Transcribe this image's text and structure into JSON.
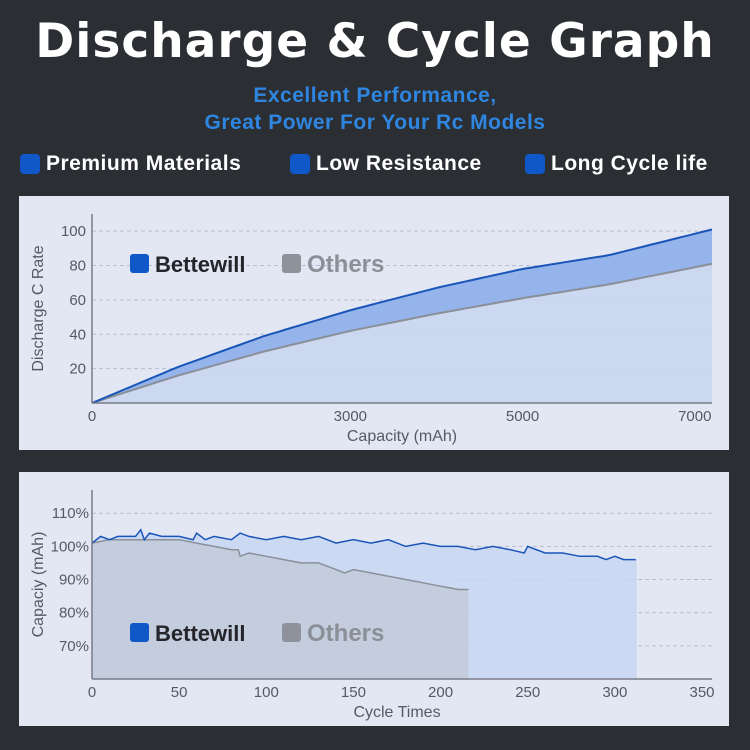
{
  "title": "Discharge & Cycle Graph",
  "subtitle": [
    "Excellent Performance,",
    "Great Power For Your Rc Models"
  ],
  "features": [
    "Premium Materials",
    "Low Resistance",
    "Long Cycle life"
  ],
  "colors": {
    "background": "#2b2e33",
    "panel": "#e3e7f4",
    "accent": "#2e86e0",
    "bettewill": "#1058c8",
    "others": "#8e939b"
  },
  "chart_data": [
    {
      "type": "line",
      "ylabel": "Discharge C Rate",
      "xlabel": "Capacity (mAh)",
      "xlim": [
        0,
        7200
      ],
      "ylim": [
        0,
        110
      ],
      "xticks": [
        0,
        3000,
        5000,
        7000
      ],
      "yticks": [
        20,
        40,
        60,
        80,
        100
      ],
      "legend": [
        "Bettewill",
        "Others"
      ],
      "legend_position": "top-left",
      "grid": "horizontal dashed",
      "series": [
        {
          "name": "Bettewill",
          "x": [
            0,
            1000,
            2000,
            3000,
            4000,
            5000,
            6000,
            7200
          ],
          "y": [
            0,
            21,
            39,
            54,
            67,
            78,
            86,
            101
          ]
        },
        {
          "name": "Others",
          "x": [
            0,
            1000,
            2000,
            3000,
            4000,
            5000,
            6000,
            7200
          ],
          "y": [
            0,
            16,
            30,
            42,
            52,
            61,
            69,
            81
          ]
        }
      ]
    },
    {
      "type": "area",
      "ylabel": "Capaciy (mAh)",
      "xlabel": "Cycle Times",
      "xlim": [
        0,
        350
      ],
      "ylim": [
        60,
        117
      ],
      "xticks": [
        0,
        50,
        100,
        150,
        200,
        250,
        300,
        350
      ],
      "yticks": [
        "70%",
        "80%",
        "90%",
        "100%",
        "110%"
      ],
      "ytick_values": [
        70,
        80,
        90,
        100,
        110
      ],
      "legend": [
        "Bettewill",
        "Others"
      ],
      "legend_position": "bottom-left",
      "grid": "horizontal dashed",
      "series": [
        {
          "name": "Bettewill",
          "x": [
            0,
            5,
            10,
            15,
            20,
            25,
            28,
            30,
            33,
            40,
            50,
            58,
            60,
            65,
            70,
            80,
            85,
            90,
            100,
            110,
            120,
            130,
            140,
            150,
            160,
            170,
            180,
            190,
            200,
            210,
            220,
            230,
            240,
            248,
            250,
            260,
            270,
            280,
            290,
            295,
            300,
            305,
            312
          ],
          "y": [
            101,
            103,
            102,
            103,
            103,
            103,
            105,
            102,
            104,
            103,
            103,
            102,
            104,
            102,
            103,
            102,
            104,
            103,
            102,
            103,
            102,
            103,
            101,
            102,
            101,
            102,
            100,
            101,
            100,
            100,
            99,
            100,
            99,
            98,
            100,
            98,
            98,
            97,
            97,
            96,
            97,
            96,
            96
          ]
        },
        {
          "name": "Others",
          "x": [
            0,
            10,
            20,
            30,
            40,
            50,
            60,
            70,
            80,
            84,
            85,
            90,
            100,
            110,
            120,
            130,
            140,
            145,
            150,
            160,
            170,
            180,
            190,
            200,
            205,
            210,
            216
          ],
          "y": [
            101,
            102,
            102,
            102,
            102,
            102,
            101,
            100,
            99,
            99,
            97,
            98,
            97,
            96,
            95,
            95,
            93,
            92,
            93,
            92,
            91,
            90,
            89,
            88,
            87.5,
            87,
            87
          ]
        }
      ]
    }
  ]
}
